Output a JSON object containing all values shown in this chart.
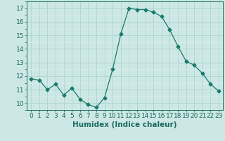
{
  "x": [
    0,
    1,
    2,
    3,
    4,
    5,
    6,
    7,
    8,
    9,
    10,
    11,
    12,
    13,
    14,
    15,
    16,
    17,
    18,
    19,
    20,
    21,
    22,
    23
  ],
  "y": [
    11.8,
    11.7,
    11.0,
    11.4,
    10.6,
    11.1,
    10.3,
    9.9,
    9.7,
    10.4,
    12.5,
    15.1,
    17.0,
    16.9,
    16.9,
    16.7,
    16.4,
    15.4,
    14.2,
    13.1,
    12.8,
    12.2,
    11.4,
    10.9
  ],
  "line_color": "#1a7a6e",
  "marker": "D",
  "marker_size": 2.5,
  "bg_color": "#cde8e4",
  "grid_major_color": "#b0d8d2",
  "grid_minor_color": "#d8efec",
  "xlabel": "Humidex (Indice chaleur)",
  "ylim": [
    9.5,
    17.5
  ],
  "xlim": [
    -0.5,
    23.5
  ],
  "yticks": [
    10,
    11,
    12,
    13,
    14,
    15,
    16,
    17
  ],
  "xtick_labels": [
    "0",
    "1",
    "2",
    "3",
    "4",
    "5",
    "6",
    "7",
    "8",
    "9",
    "10",
    "11",
    "12",
    "13",
    "14",
    "15",
    "16",
    "17",
    "18",
    "19",
    "20",
    "21",
    "22",
    "23"
  ],
  "tick_color": "#1a6a60",
  "label_fontsize": 7.5,
  "tick_fontsize": 6.5
}
